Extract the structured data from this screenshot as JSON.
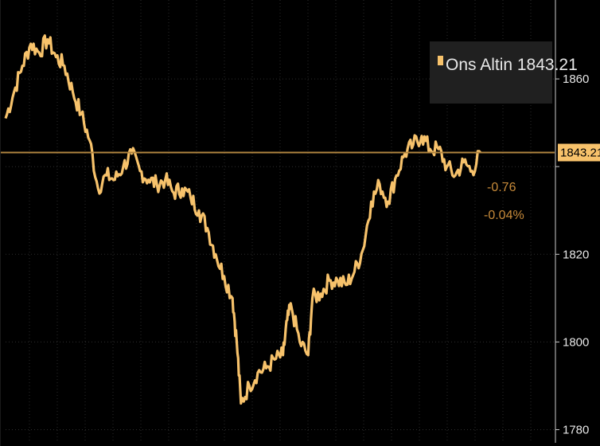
{
  "chart_data": {
    "type": "line",
    "title": "",
    "xlabel": "",
    "ylabel": "",
    "ylim": [
      1777,
      1878
    ],
    "y_ticks": [
      1780,
      1800,
      1820,
      1840,
      1860
    ],
    "y_tick_labels": [
      "1780",
      "1800",
      "1820",
      "",
      "1860"
    ],
    "grid": true,
    "legend_position": "top-right",
    "series": [
      {
        "name": "Ons Altin",
        "color": "#f7c26b",
        "points": [
          [
            0,
            1851
          ],
          [
            4,
            1857
          ],
          [
            8,
            1863
          ],
          [
            12,
            1868
          ],
          [
            16,
            1866
          ],
          [
            20,
            1869
          ],
          [
            24,
            1865
          ],
          [
            28,
            1863
          ],
          [
            32,
            1857
          ],
          [
            36,
            1852
          ],
          [
            40,
            1846
          ],
          [
            44,
            1835
          ],
          [
            48,
            1838
          ],
          [
            52,
            1837
          ],
          [
            56,
            1840
          ],
          [
            60,
            1843
          ],
          [
            64,
            1839
          ],
          [
            68,
            1837
          ],
          [
            72,
            1836
          ],
          [
            76,
            1837
          ],
          [
            80,
            1834
          ],
          [
            84,
            1835
          ],
          [
            88,
            1833
          ],
          [
            92,
            1830
          ],
          [
            96,
            1826
          ],
          [
            100,
            1820
          ],
          [
            104,
            1815
          ],
          [
            108,
            1810
          ],
          [
            110,
            1800
          ],
          [
            112,
            1786
          ],
          [
            116,
            1790
          ],
          [
            120,
            1793
          ],
          [
            124,
            1794
          ],
          [
            128,
            1796
          ],
          [
            132,
            1797
          ],
          [
            134,
            1805
          ],
          [
            136,
            1808
          ],
          [
            140,
            1800
          ],
          [
            144,
            1797
          ],
          [
            146,
            1810
          ],
          [
            150,
            1811
          ],
          [
            154,
            1814
          ],
          [
            158,
            1814
          ],
          [
            162,
            1813
          ],
          [
            166,
            1816
          ],
          [
            170,
            1821
          ],
          [
            174,
            1832
          ],
          [
            178,
            1836
          ],
          [
            182,
            1832
          ],
          [
            186,
            1838
          ],
          [
            190,
            1843
          ],
          [
            194,
            1845
          ],
          [
            198,
            1847
          ],
          [
            202,
            1844
          ],
          [
            206,
            1844
          ],
          [
            210,
            1840
          ],
          [
            214,
            1838
          ],
          [
            218,
            1841
          ],
          [
            222,
            1839
          ],
          [
            226,
            1843.21
          ]
        ]
      }
    ],
    "last_value": "1843.21",
    "net_change": "-0.76",
    "pct_change": "-0.04%",
    "change_color": "#c88b3a"
  },
  "legend": {
    "label": "Ons Altin 1843.21"
  }
}
